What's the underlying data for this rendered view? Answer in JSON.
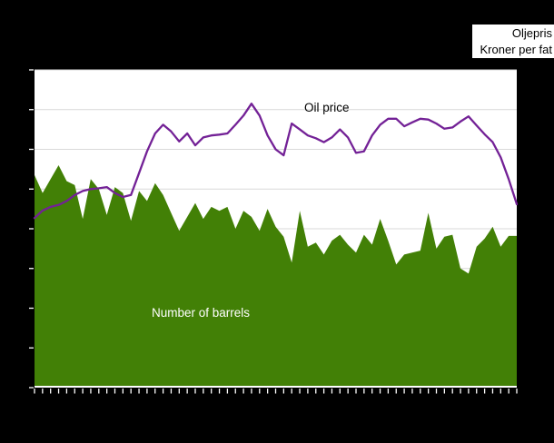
{
  "window": {
    "background": "#000000"
  },
  "legend": {
    "title": "Oljepris",
    "subtitle": "Kroner per fat",
    "background": "#ffffff",
    "text_color": "#000000",
    "position": "top-right"
  },
  "labels": {
    "oil_price": "Oil price",
    "barrels": "Number of barrels"
  },
  "colors": {
    "plot_background": "#ffffff",
    "gridline": "#d9d9d9",
    "axis_ticks": "#ffffff",
    "oil_line": "#732196",
    "barrels_fill": "#428006"
  },
  "chart_data": {
    "type": "area",
    "title": "",
    "xlabel": "",
    "ylabel": "",
    "units_note": "No numeric axis labels are visible in the image (cropped); y values are expressed in gridline divisions 0-8, x is 61 consecutive points (monthly ticks).",
    "x_axis": {
      "point_count": 61,
      "tick_count": 61,
      "tick_labels_visible": false
    },
    "y_axis": {
      "min": 0,
      "max": 8,
      "gridline_divisions": 8,
      "tick_labels_visible": false,
      "grid": "horizontal gridlines on"
    },
    "legend_position": "top-right",
    "series": [
      {
        "name": "Number of barrels",
        "type": "area",
        "color": "#428006",
        "values": [
          5.35,
          4.9,
          5.25,
          5.6,
          5.2,
          5.1,
          4.25,
          5.25,
          5.0,
          4.35,
          5.05,
          4.9,
          4.2,
          4.95,
          4.7,
          5.15,
          4.85,
          4.4,
          3.95,
          4.3,
          4.65,
          4.25,
          4.55,
          4.45,
          4.55,
          4.0,
          4.45,
          4.3,
          3.95,
          4.5,
          4.05,
          3.8,
          3.15,
          4.45,
          3.55,
          3.65,
          3.35,
          3.7,
          3.85,
          3.6,
          3.4,
          3.85,
          3.6,
          4.25,
          3.7,
          3.1,
          3.35,
          3.4,
          3.45,
          4.4,
          3.5,
          3.8,
          3.85,
          3.0,
          2.87,
          3.55,
          3.75,
          4.05,
          3.55,
          3.82,
          3.82
        ]
      },
      {
        "name": "Oil price",
        "type": "line",
        "color": "#732196",
        "values": [
          4.27,
          4.46,
          4.55,
          4.6,
          4.7,
          4.85,
          4.95,
          5.0,
          5.02,
          5.05,
          4.9,
          4.8,
          4.85,
          5.4,
          5.95,
          6.4,
          6.62,
          6.45,
          6.2,
          6.4,
          6.1,
          6.3,
          6.35,
          6.37,
          6.4,
          6.62,
          6.85,
          7.15,
          6.85,
          6.35,
          6.0,
          5.85,
          6.65,
          6.5,
          6.35,
          6.28,
          6.18,
          6.3,
          6.5,
          6.3,
          5.91,
          5.95,
          6.35,
          6.62,
          6.77,
          6.77,
          6.58,
          6.68,
          6.77,
          6.75,
          6.65,
          6.52,
          6.55,
          6.7,
          6.83,
          6.6,
          6.38,
          6.18,
          5.8,
          5.25,
          4.62
        ]
      }
    ]
  }
}
